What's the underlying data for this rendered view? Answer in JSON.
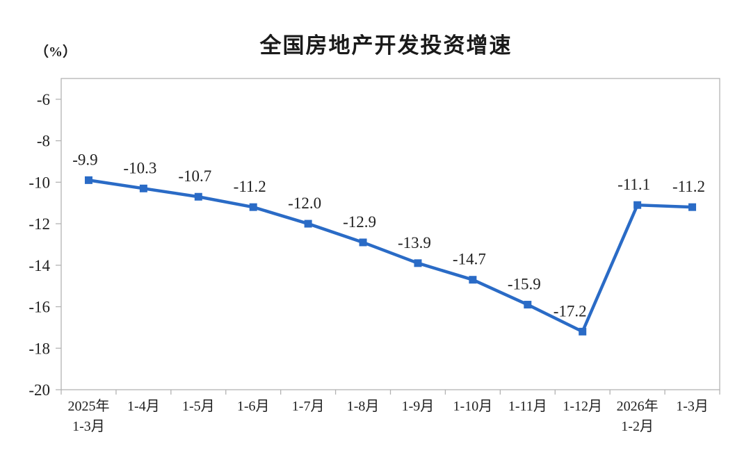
{
  "chart": {
    "title": "全国房地产开发投资增速",
    "unit_label": "（%）"
  },
  "chart_data": {
    "type": "line",
    "title": "全国房地产开发投资增速",
    "ylabel": "（%）",
    "xlabel": "",
    "categories": [
      [
        "2025年",
        "1-3月"
      ],
      [
        "1-4月"
      ],
      [
        "1-5月"
      ],
      [
        "1-6月"
      ],
      [
        "1-7月"
      ],
      [
        "1-8月"
      ],
      [
        "1-9月"
      ],
      [
        "1-10月"
      ],
      [
        "1-11月"
      ],
      [
        "1-12月"
      ],
      [
        "2026年",
        "1-2月"
      ],
      [
        "1-3月"
      ]
    ],
    "values": [
      -9.9,
      -10.3,
      -10.7,
      -11.2,
      -12.0,
      -12.9,
      -13.9,
      -14.7,
      -15.9,
      -17.2,
      -11.1,
      -11.2
    ],
    "data_labels": [
      "-9.9",
      "-10.3",
      "-10.7",
      "-11.2",
      "-12.0",
      "-12.9",
      "-13.9",
      "-14.7",
      "-15.9",
      "-17.2",
      "-11.1",
      "-11.2"
    ],
    "ylim": [
      -20,
      -5
    ],
    "yticks": [
      -6,
      -8,
      -10,
      -12,
      -14,
      -16,
      -18,
      -20
    ],
    "grid": false,
    "legend": "none",
    "marker": "square",
    "colors": {
      "line": "#2a6bc6",
      "marker": "#2a6bc6",
      "axis": "#b3b3b3",
      "tick_text": "#1f1f1f",
      "data_label_text": "#1f1f1f"
    }
  }
}
